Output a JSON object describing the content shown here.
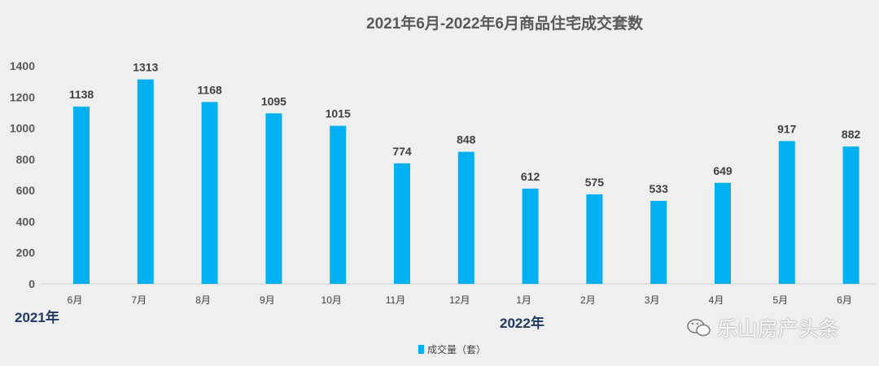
{
  "chart_data": {
    "type": "bar",
    "title": "2021年6月-2022年6月商品住宅成交套数",
    "categories": [
      "6月",
      "7月",
      "8月",
      "9月",
      "10月",
      "11月",
      "12月",
      "1月",
      "2月",
      "3月",
      "4月",
      "5月",
      "6月"
    ],
    "series": [
      {
        "name": "成交量（套）",
        "values": [
          1138,
          1313,
          1168,
          1095,
          1015,
          774,
          848,
          612,
          575,
          533,
          649,
          917,
          882
        ]
      }
    ],
    "year_labels": [
      "2021年",
      "2022年"
    ],
    "yticks": [
      0,
      200,
      400,
      600,
      800,
      1000,
      1200,
      1400
    ],
    "ylim": [
      0,
      1400
    ],
    "grid": false,
    "legend": "bottom",
    "bar_color": "#00b0f0",
    "data_labels": true
  },
  "watermark": "乐山房产头条"
}
